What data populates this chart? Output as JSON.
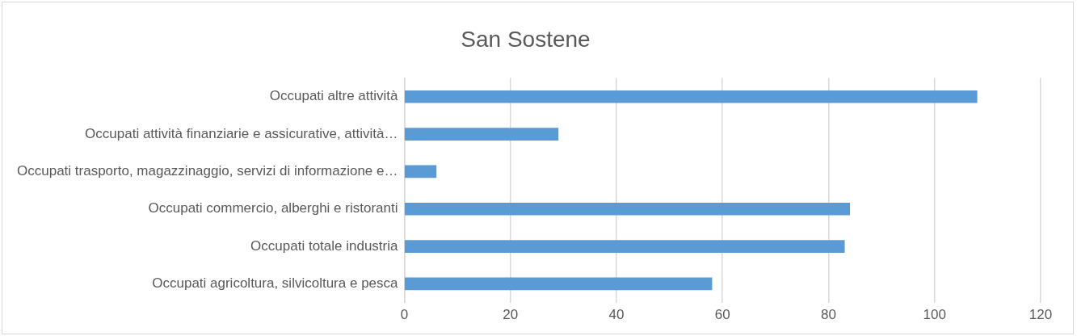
{
  "chart_data": {
    "type": "bar",
    "orientation": "horizontal",
    "title": "San Sostene",
    "categories": [
      "Occupati altre attività",
      "Occupati attività finanziarie e assicurative, attività…",
      "Occupati trasporto, magazzinaggio, servizi di informazione e…",
      "Occupati commercio, alberghi e ristoranti",
      "Occupati totale industria",
      "Occupati agricoltura, silvicoltura e pesca"
    ],
    "values": [
      108,
      29,
      6,
      84,
      83,
      58
    ],
    "color": "#5b9bd5",
    "xlim": [
      0,
      120
    ],
    "xticks": [
      0,
      20,
      40,
      60,
      80,
      100,
      120
    ],
    "grid": "x",
    "legend": false
  }
}
